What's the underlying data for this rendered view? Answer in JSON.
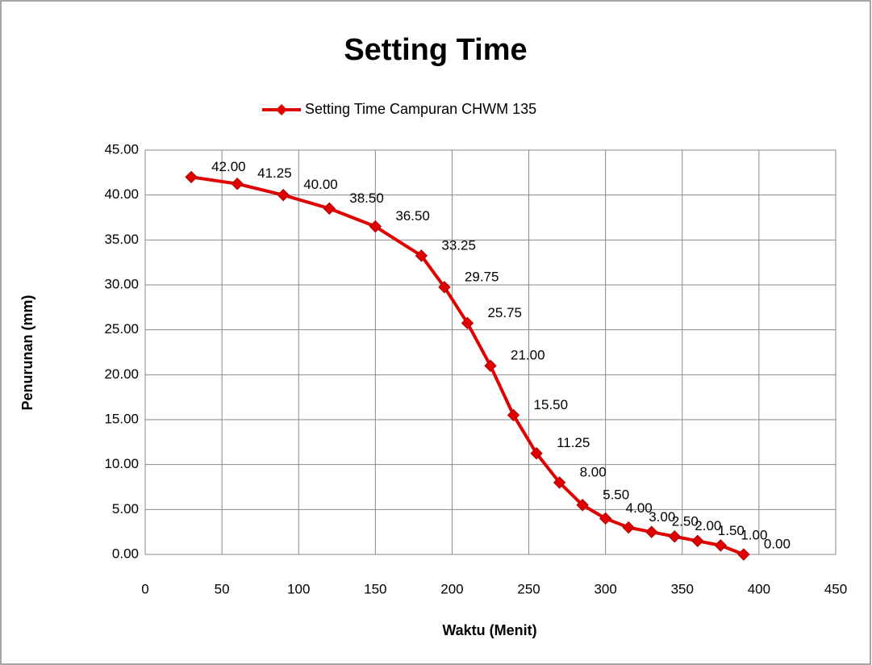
{
  "chart_data": {
    "type": "line",
    "title": "Setting Time",
    "x_label": "Waktu (Menit)",
    "y_label": "Penurunan (mm)",
    "x": [
      30,
      60,
      90,
      120,
      150,
      180,
      195,
      210,
      225,
      240,
      255,
      270,
      285,
      300,
      315,
      330,
      345,
      360,
      375,
      390
    ],
    "series": [
      {
        "name": "Setting Time Campuran CHWM 135",
        "color": "#e00000",
        "values": [
          42,
          41.25,
          40,
          38.5,
          36.5,
          33.25,
          29.75,
          25.75,
          21,
          15.5,
          11.25,
          8,
          5.5,
          4,
          3,
          2.5,
          2,
          1.5,
          1,
          0
        ],
        "value_labels": [
          "42.00",
          "41.25",
          "40.00",
          "38.50",
          "36.50",
          "33.25",
          "29.75",
          "25.75",
          "21.00",
          "15.50",
          "11.25",
          "8.00",
          "5.50",
          "4.00",
          "3.00",
          "2.50",
          "2.00",
          "1.50",
          "1.00",
          "0.00"
        ]
      }
    ],
    "xlim": [
      0,
      450
    ],
    "xticks": [
      0,
      50,
      100,
      150,
      200,
      250,
      300,
      350,
      400,
      450
    ],
    "ylim": [
      0,
      45
    ],
    "yticks": [
      {
        "value": 0,
        "label": "0.00"
      },
      {
        "value": 5,
        "label": "5.00"
      },
      {
        "value": 10,
        "label": "10.00"
      },
      {
        "value": 15,
        "label": "15.00"
      },
      {
        "value": 20,
        "label": "20.00"
      },
      {
        "value": 25,
        "label": "25.00"
      },
      {
        "value": 30,
        "label": "30.00"
      },
      {
        "value": 35,
        "label": "35.00"
      },
      {
        "value": 40,
        "label": "40.00"
      },
      {
        "value": 45,
        "label": "45.00"
      }
    ],
    "grid": true,
    "legend": "top"
  }
}
